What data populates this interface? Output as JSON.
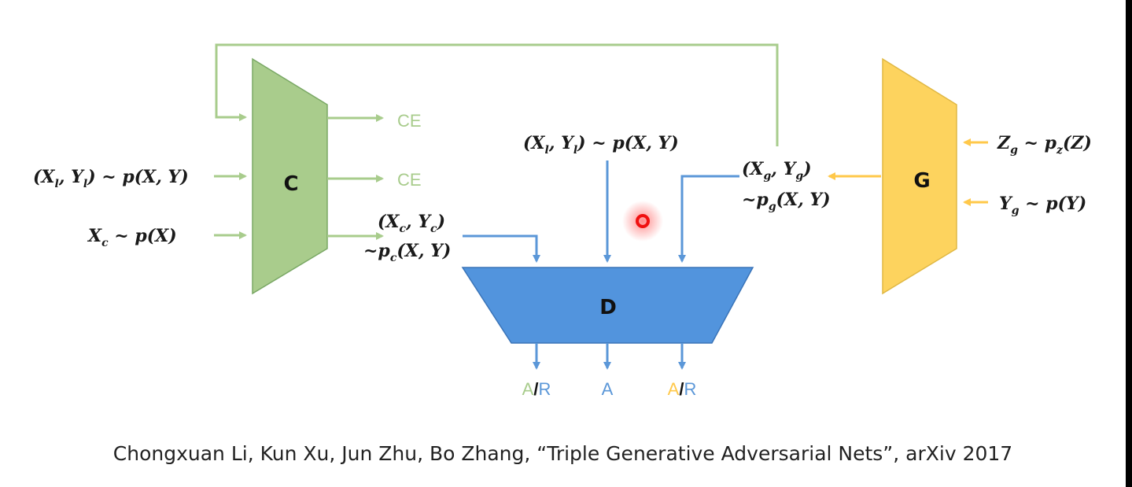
{
  "colors": {
    "classifier": "#a9cc8c",
    "classifier_stroke": "#7aa865",
    "generator": "#fdd35e",
    "generator_stroke": "#e0b844",
    "discriminator": "#5294dd",
    "discriminator_stroke": "#3a74b8",
    "green_arrow": "#a8cc8c",
    "yellow_arrow": "#ffc84a",
    "blue_arrow": "#5b97d8",
    "cursor_red": "#f01010"
  },
  "blocks": {
    "classifier": "C",
    "discriminator": "D",
    "generator": "G"
  },
  "inputs": {
    "c_labeled": "(X_l, Y_l) ~ p(X, Y)",
    "c_unlabeled": "X_c ~ p(X)",
    "g_noise": "Z_g ~ p_z(Z)",
    "g_label": "Y_g ~ p(Y)",
    "d_labeled": "(X_l, Y_l) ~ p(X, Y)"
  },
  "intermediate": {
    "c_output_line1": "(X_c, Y_c)",
    "c_output_line2": "~p_c(X, Y)",
    "g_output_line1": "(X_g, Y_g)",
    "g_output_line2": "~p_g(X, Y)"
  },
  "losses": {
    "ce_top": "CE",
    "ce_mid": "CE"
  },
  "d_outputs": {
    "left": {
      "a": "A",
      "slash": "/",
      "r": "R"
    },
    "center": "A",
    "right": {
      "a": "A",
      "slash": "/",
      "r": "R"
    }
  },
  "caption": "Chongxuan Li, Kun Xu, Jun Zhu, Bo Zhang, “Triple Generative Adversarial Nets”, arXiv 2017"
}
